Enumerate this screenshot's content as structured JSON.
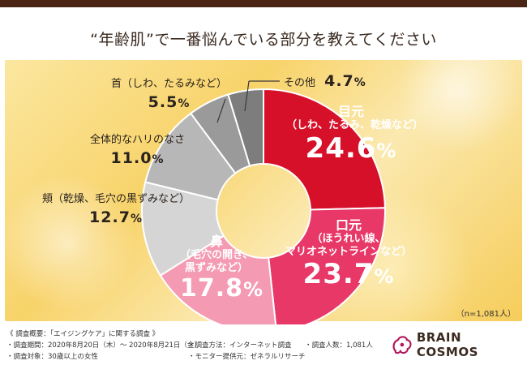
{
  "title": "“年齢肌”で一番悩んでいる部分を教えてください",
  "chart_data": {
    "type": "pie",
    "style": "donut",
    "start_angle_deg": 0,
    "direction": "clockwise",
    "slices": [
      {
        "name": "目元",
        "sub": "（しわ、たるみ、乾燥など）",
        "value": 24.6,
        "color": "#d7102a",
        "label_style": "inside"
      },
      {
        "name": "口元",
        "sub": "（ほうれい線、マリオネットラインなど）",
        "value": 23.7,
        "color": "#e83868",
        "label_style": "inside"
      },
      {
        "name": "鼻",
        "sub": "（毛穴の開き、黒ずみなど）",
        "value": 17.8,
        "color": "#f49ab3",
        "label_style": "inside"
      },
      {
        "name": "頬（乾燥、毛穴の黒ずみなど）",
        "value": 12.7,
        "color": "#d5d5d5",
        "label_style": "outside"
      },
      {
        "name": "全体的なハリのなさ",
        "value": 11.0,
        "color": "#b7b7b7",
        "label_style": "outside"
      },
      {
        "name": "首（しわ、たるみなど）",
        "value": 5.5,
        "color": "#9a9a9a",
        "label_style": "outside"
      },
      {
        "name": "その他",
        "value": 4.7,
        "color": "#7d7d7d",
        "label_style": "outside"
      }
    ],
    "pct_unit": "%"
  },
  "labels": {
    "s0_title": "目元",
    "s0_sub": "（しわ、たるみ、乾燥など）",
    "s0_num": "24.6",
    "s1_title": "口元",
    "s1_sub1": "（ほうれい線、",
    "s1_sub2": "マリオネットラインなど）",
    "s1_num": "23.7",
    "s2_title": "鼻",
    "s2_sub1": "（毛穴の開き、",
    "s2_sub2": "黒ずみなど）",
    "s2_num": "17.8",
    "s3_text": "頬（乾燥、毛穴の黒ずみなど）",
    "s3_num": "12.7",
    "s4_text": "全体的なハリのなさ",
    "s4_num": "11.0",
    "s5_text": "首（しわ、たるみなど）",
    "s5_num": "5.5",
    "s6_text": "その他",
    "s6_num": "4.7",
    "unit": "%"
  },
  "sample_note": "（n=1,081人）",
  "footer": {
    "overview": "《 調査概要：「エイジングケア」に関する調査 》",
    "period": "・調査期間：2020年8月20日（木）～ 2020年8月21日（金）",
    "method": "・調査方法：インターネット調査",
    "count": "・調査人数：1,081人",
    "target": "・調査対象：30歳以上の女性",
    "provider": "・モニター提供元：ゼネラルリサーチ"
  },
  "brand": {
    "name": "BRAIN COSMOS",
    "logo_icon": "brain-cosmos-logo-icon",
    "logo_color": "#b2185a"
  }
}
